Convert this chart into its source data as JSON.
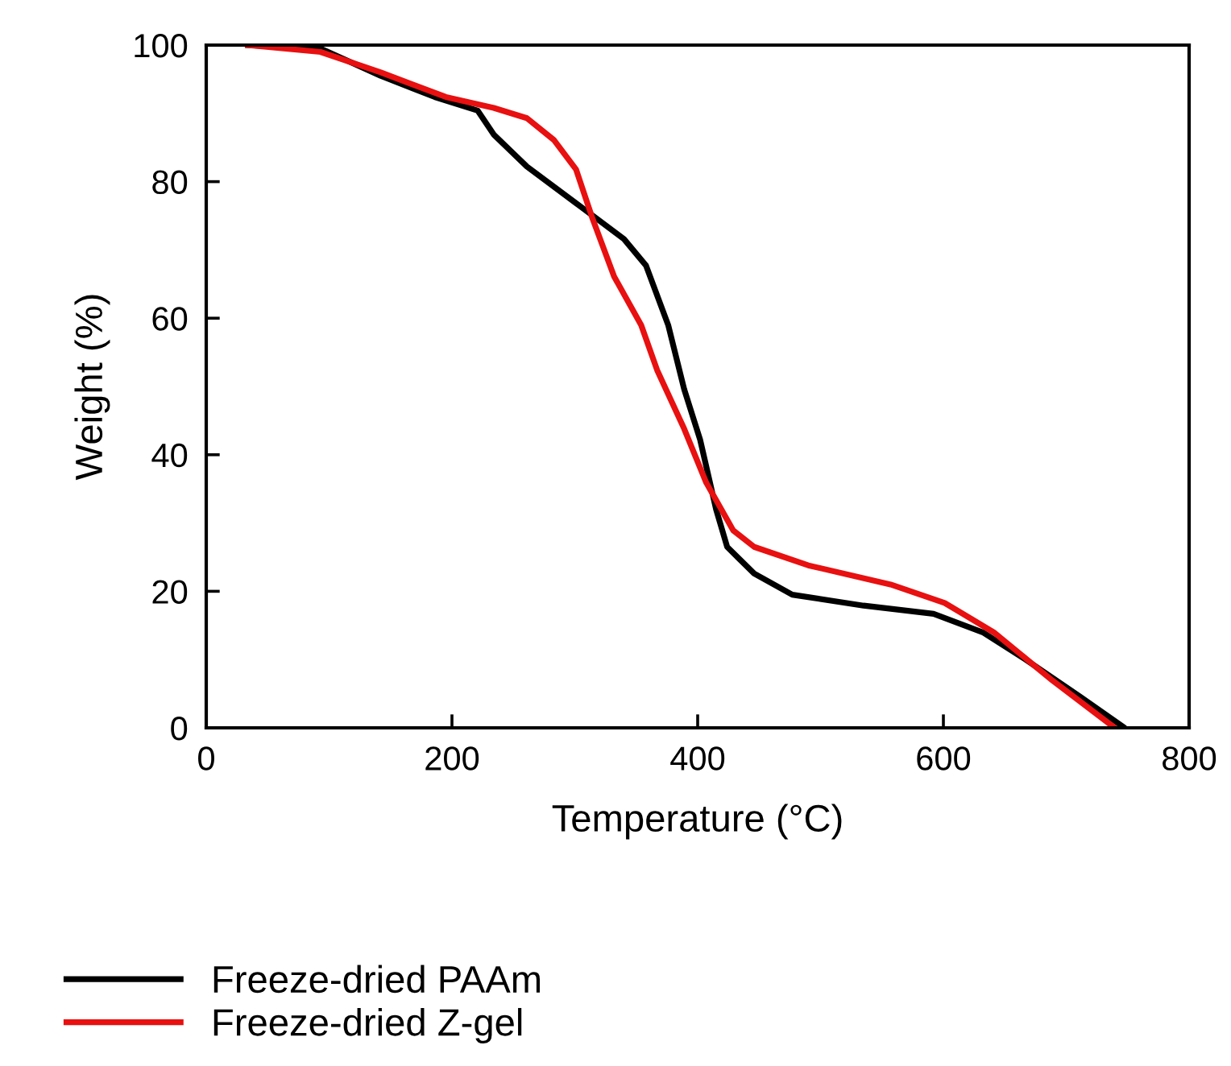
{
  "chart_data": {
    "type": "line",
    "xlabel": "Temperature (°C)",
    "ylabel": "Weight (%)",
    "xlim": [
      0,
      800
    ],
    "ylim": [
      0,
      100
    ],
    "xticks": [
      0,
      200,
      400,
      600,
      800
    ],
    "yticks": [
      0,
      20,
      40,
      60,
      80,
      100
    ],
    "grid": false,
    "legend": "bottom",
    "marker": "none",
    "line_style": "solid",
    "series": [
      {
        "name": "Freeze-dried PAAm",
        "color": "#000000",
        "x": [
          34,
          93,
          142,
          186,
          221,
          234,
          261,
          305,
          340,
          358,
          376,
          389,
          402,
          415,
          424,
          433,
          446,
          477,
          535,
          592,
          632,
          667,
          711,
          746
        ],
        "values": [
          100,
          99.5,
          95.5,
          92.4,
          90.4,
          86.9,
          82.2,
          76.3,
          71.6,
          67.7,
          59,
          49.6,
          42.2,
          32,
          26.5,
          24.9,
          22.6,
          19.5,
          17.9,
          16.7,
          14,
          10,
          4.6,
          0.2
        ]
      },
      {
        "name": "Freeze-dried Z-gel",
        "color": "#e81010",
        "x": [
          34,
          93,
          142,
          195,
          234,
          261,
          283,
          301,
          314,
          332,
          354,
          367,
          389,
          407,
          429,
          446,
          490,
          557,
          601,
          641,
          689,
          738
        ],
        "values": [
          100,
          99,
          96,
          92.4,
          90.8,
          89.3,
          86.1,
          81.8,
          74.8,
          66.1,
          59,
          52.4,
          43.8,
          35.9,
          28.9,
          26.5,
          23.8,
          21,
          18.3,
          14,
          6.9,
          0.2
        ]
      }
    ]
  }
}
